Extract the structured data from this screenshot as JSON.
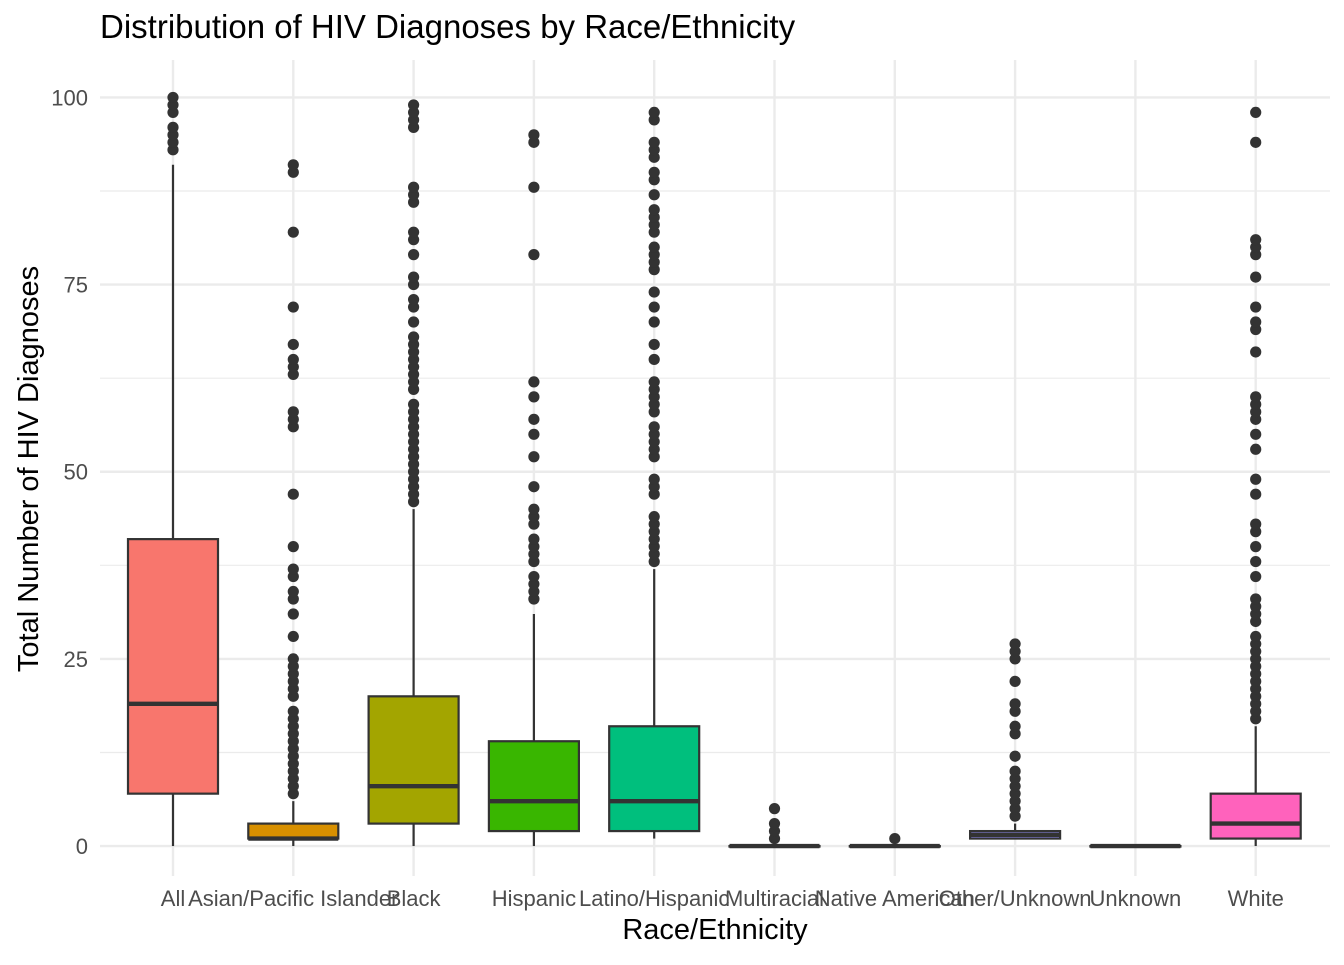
{
  "chart_data": {
    "type": "boxplot",
    "title": "Distribution of HIV Diagnoses by Race/Ethnicity",
    "xlabel": "Race/Ethnicity",
    "ylabel": "Total Number of HIV Diagnoses",
    "ylim": [
      -4,
      105
    ],
    "yticks": [
      0,
      25,
      50,
      75,
      100
    ],
    "grid": true,
    "legend": "none",
    "categories": [
      "All",
      "Asian/Pacific Islander",
      "Black",
      "Hispanic",
      "Latino/Hispanic",
      "Multiracial",
      "Native American",
      "Other/Unknown",
      "Unknown",
      "White"
    ],
    "colors": [
      "#F8766D",
      "#D89000",
      "#A3A500",
      "#39B600",
      "#00BF7D",
      "#00BFC4",
      "#00B0F6",
      "#9590FF",
      "#E76BF3",
      "#FF62BC"
    ],
    "boxes": [
      {
        "category": "All",
        "q1": 7,
        "median": 19,
        "q3": 41,
        "whisker_low": 0,
        "whisker_high": 91,
        "outliers": [
          93,
          94,
          95,
          96,
          98,
          99,
          100
        ]
      },
      {
        "category": "Asian/Pacific Islander",
        "q1": 1,
        "median": 1,
        "q3": 3,
        "whisker_low": 0,
        "whisker_high": 6,
        "outliers": [
          7,
          8,
          9,
          10,
          11,
          12,
          13,
          14,
          15,
          16,
          17,
          18,
          20,
          21,
          22,
          23,
          24,
          25,
          28,
          31,
          33,
          34,
          36,
          37,
          40,
          47,
          56,
          57,
          58,
          63,
          64,
          65,
          67,
          72,
          82,
          90,
          91
        ]
      },
      {
        "category": "Black",
        "q1": 3,
        "median": 8,
        "q3": 20,
        "whisker_low": 0,
        "whisker_high": 45,
        "outliers": [
          46,
          47,
          48,
          49,
          50,
          51,
          52,
          53,
          54,
          55,
          56,
          57,
          58,
          59,
          61,
          62,
          63,
          64,
          65,
          66,
          67,
          68,
          70,
          72,
          73,
          75,
          76,
          79,
          81,
          82,
          86,
          87,
          88,
          96,
          97,
          98,
          99
        ]
      },
      {
        "category": "Hispanic",
        "q1": 2,
        "median": 6,
        "q3": 14,
        "whisker_low": 0,
        "whisker_high": 31,
        "outliers": [
          33,
          34,
          35,
          36,
          38,
          39,
          40,
          41,
          43,
          44,
          45,
          48,
          52,
          55,
          57,
          60,
          62,
          79,
          88,
          94,
          95
        ]
      },
      {
        "category": "Latino/Hispanic",
        "q1": 2,
        "median": 6,
        "q3": 16,
        "whisker_low": 1,
        "whisker_high": 37,
        "outliers": [
          38,
          39,
          40,
          41,
          42,
          43,
          44,
          47,
          48,
          49,
          52,
          53,
          54,
          55,
          56,
          58,
          59,
          60,
          61,
          62,
          65,
          67,
          70,
          72,
          74,
          77,
          78,
          79,
          80,
          82,
          83,
          84,
          85,
          87,
          89,
          90,
          92,
          93,
          94,
          97,
          98
        ]
      },
      {
        "category": "Multiracial",
        "q1": 0,
        "median": 0,
        "q3": 0,
        "whisker_low": 0,
        "whisker_high": 0,
        "outliers": [
          1,
          2,
          3,
          5
        ]
      },
      {
        "category": "Native American",
        "q1": 0,
        "median": 0,
        "q3": 0,
        "whisker_low": 0,
        "whisker_high": 0,
        "outliers": [
          1
        ]
      },
      {
        "category": "Other/Unknown",
        "q1": 1,
        "median": 1.5,
        "q3": 2,
        "whisker_low": 1,
        "whisker_high": 3,
        "outliers": [
          4,
          5,
          6,
          7,
          8,
          9,
          10,
          12,
          15,
          16,
          18,
          19,
          22,
          25,
          26,
          27
        ]
      },
      {
        "category": "Unknown",
        "q1": 0,
        "median": 0,
        "q3": 0,
        "whisker_low": 0,
        "whisker_high": 0,
        "outliers": []
      },
      {
        "category": "White",
        "q1": 1,
        "median": 3,
        "q3": 7,
        "whisker_low": 0,
        "whisker_high": 16,
        "outliers": [
          17,
          18,
          19,
          20,
          21,
          22,
          23,
          24,
          25,
          26,
          27,
          28,
          30,
          31,
          32,
          33,
          36,
          38,
          40,
          42,
          43,
          47,
          49,
          53,
          55,
          57,
          58,
          59,
          60,
          66,
          69,
          70,
          72,
          76,
          79,
          80,
          81,
          94,
          98
        ]
      }
    ]
  }
}
